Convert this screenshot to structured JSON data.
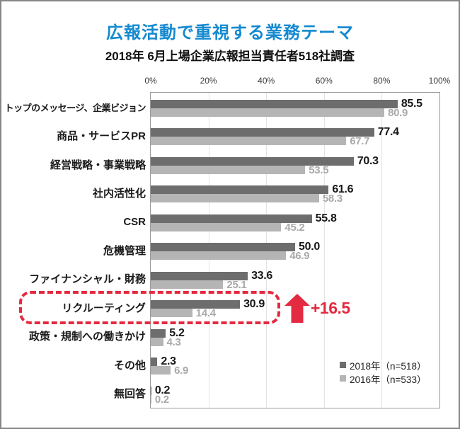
{
  "header": {
    "title": "広報活動で重視する業務テーマ",
    "subtitle": "2018年 6月上場企業広報担当責任者518社調査",
    "title_color": "#1489d0"
  },
  "chart_data": {
    "type": "bar",
    "orientation": "horizontal",
    "title": "広報活動で重視する業務テーマ",
    "xlabel": "",
    "ylabel": "",
    "x_axis": {
      "min": 0,
      "max": 100,
      "ticks": [
        "0%",
        "20%",
        "40%",
        "60%",
        "80%",
        "100%"
      ]
    },
    "grid": true,
    "legend_position": "inside-bottom-right",
    "categories": [
      "トップのメッセージ、企業ビジョン",
      "商品・サービスPR",
      "経営戦略・事業戦略",
      "社内活性化",
      "CSR",
      "危機管理",
      "ファイナンシャル・財務",
      "リクルーティング",
      "政策・規制への働きかけ",
      "その他",
      "無回答"
    ],
    "series": [
      {
        "name": "2018年（n=518）",
        "color": "#6d6d6d",
        "values": [
          85.5,
          77.4,
          70.3,
          61.6,
          55.8,
          50.0,
          33.6,
          30.9,
          5.2,
          2.3,
          0.2
        ]
      },
      {
        "name": "2016年（n=533）",
        "color": "#b5b5b5",
        "values": [
          80.9,
          67.7,
          53.5,
          58.3,
          45.2,
          46.9,
          25.1,
          14.4,
          4.3,
          6.9,
          0.2
        ]
      }
    ],
    "annotation": {
      "highlighted_category": "リクルーティング",
      "arrow": "up-arrow",
      "delta_label": "+16.5",
      "color": "#e42a40"
    }
  }
}
